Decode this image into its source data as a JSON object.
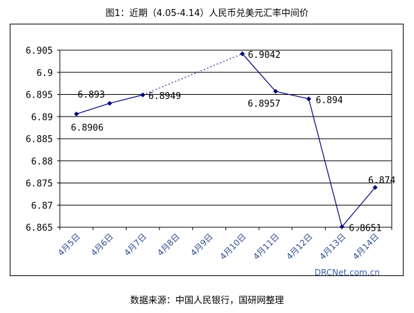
{
  "title": "图1：近期（4.05-4.14）人民币兑美元汇率中间价",
  "source_note": "数据来源：中国人民银行，国研网整理",
  "watermark": "DRCNet.com.cn",
  "colors": {
    "line": "#000080",
    "marker": "#000080",
    "grid": "#000000",
    "watermark": "#3a5fb0"
  },
  "chart_data": {
    "type": "line",
    "title": "图1：近期（4.05-4.14）人民币兑美元汇率中间价",
    "xlabel": "",
    "ylabel": "",
    "categories": [
      "4月5日",
      "4月6日",
      "4月7日",
      "4月8日",
      "4月9日",
      "4月10日",
      "4月11日",
      "4月12日",
      "4月13日",
      "4月14日"
    ],
    "ylim": [
      6.865,
      6.905
    ],
    "yticks": [
      6.865,
      6.87,
      6.875,
      6.88,
      6.885,
      6.89,
      6.895,
      6.9,
      6.905
    ],
    "ytick_labels": [
      "6.865",
      "6.87",
      "6.875",
      "6.88",
      "6.885",
      "6.89",
      "6.895",
      "6.9",
      "6.905"
    ],
    "grid": true,
    "series": [
      {
        "name": "",
        "points": [
          {
            "category": "4月5日",
            "value": 6.8906,
            "label": "6.8906"
          },
          {
            "category": "4月6日",
            "value": 6.893,
            "label": "6.893"
          },
          {
            "category": "4月7日",
            "value": 6.8949,
            "label": "6.8949"
          },
          {
            "category": "4月10日",
            "value": 6.9042,
            "label": "6.9042"
          },
          {
            "category": "4月11日",
            "value": 6.8957,
            "label": "6.8957"
          },
          {
            "category": "4月12日",
            "value": 6.894,
            "label": "6.894"
          },
          {
            "category": "4月13日",
            "value": 6.8651,
            "label": "6.8651"
          },
          {
            "category": "4月14日",
            "value": 6.874,
            "label": "6.874"
          }
        ]
      }
    ]
  }
}
